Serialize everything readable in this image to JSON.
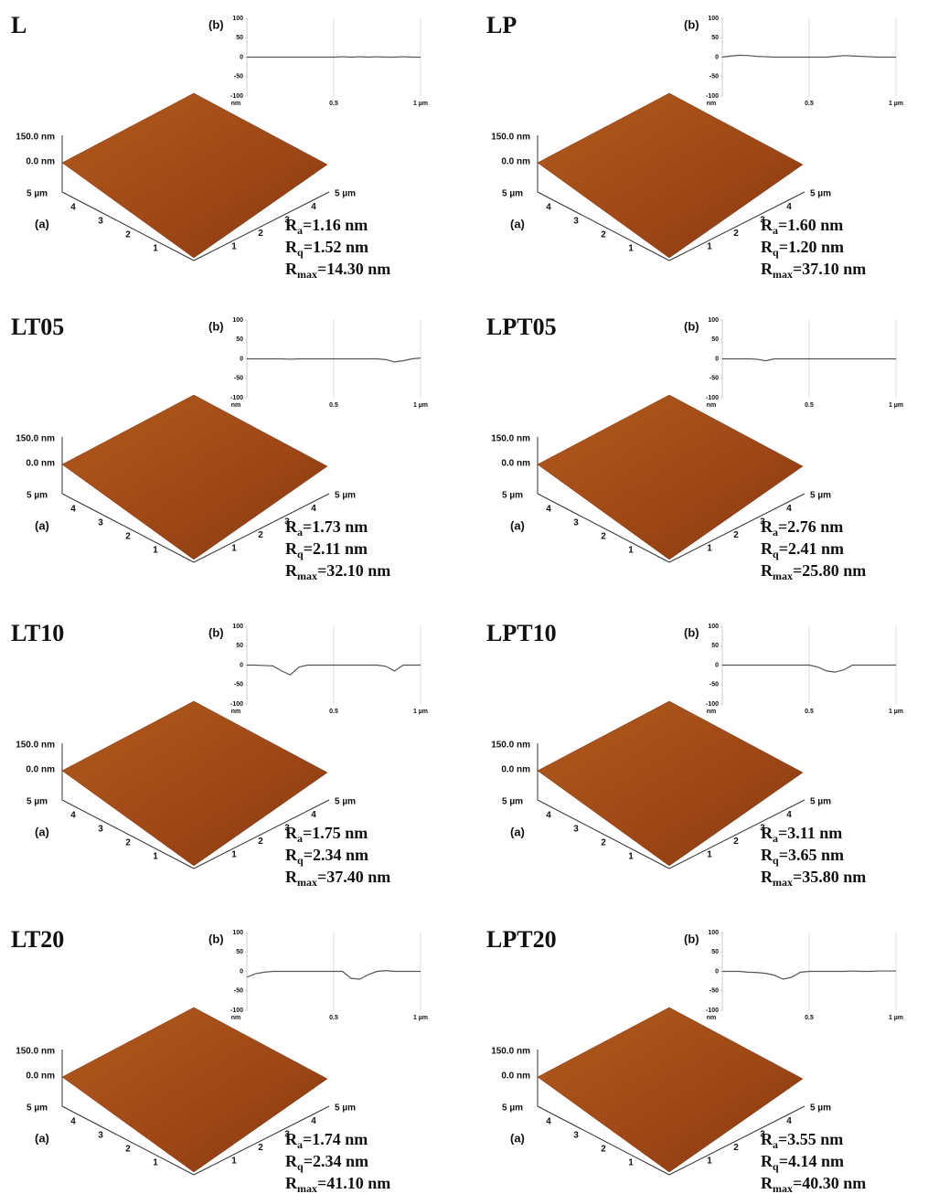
{
  "panels": [
    {
      "sample": "L",
      "afm": {
        "label": "(a)",
        "z_ticks": [
          "150.0 nm",
          "0.0 nm"
        ],
        "left_ticks": [
          "5 µm",
          "4",
          "3",
          "2",
          "1"
        ],
        "right_ticks": [
          "5 µm",
          "4",
          "3",
          "2",
          "1"
        ]
      },
      "roughness": [
        {
          "symbol": "R",
          "subscript": "a",
          "text": "=1.16 nm"
        },
        {
          "symbol": "R",
          "subscript": "q",
          "text": "=1.52 nm"
        },
        {
          "symbol": "R",
          "subscript": "max",
          "text": "=14.30 nm"
        }
      ]
    },
    {
      "sample": "LP",
      "afm": {
        "label": "(a)",
        "z_ticks": [
          "150.0 nm",
          "0.0 nm"
        ],
        "left_ticks": [
          "5 µm",
          "4",
          "3",
          "2",
          "1"
        ],
        "right_ticks": [
          "5 µm",
          "4",
          "3",
          "2",
          "1"
        ]
      },
      "roughness": [
        {
          "symbol": "R",
          "subscript": "a",
          "text": "=1.60 nm"
        },
        {
          "symbol": "R",
          "subscript": "q",
          "text": "=1.20 nm"
        },
        {
          "symbol": "R",
          "subscript": "max",
          "text": "=37.10 nm"
        }
      ]
    },
    {
      "sample": "LT05",
      "afm": {
        "label": "(a)",
        "z_ticks": [
          "150.0 nm",
          "0.0 nm"
        ],
        "left_ticks": [
          "5 µm",
          "4",
          "3",
          "2",
          "1"
        ],
        "right_ticks": [
          "5 µm",
          "4",
          "3",
          "2",
          "1"
        ]
      },
      "roughness": [
        {
          "symbol": "R",
          "subscript": "a",
          "text": "=1.73 nm"
        },
        {
          "symbol": "R",
          "subscript": "q",
          "text": "=2.11 nm"
        },
        {
          "symbol": "R",
          "subscript": "max",
          "text": "=32.10 nm"
        }
      ]
    },
    {
      "sample": "LPT05",
      "afm": {
        "label": "(a)",
        "z_ticks": [
          "150.0 nm",
          "0.0 nm"
        ],
        "left_ticks": [
          "5 µm",
          "4",
          "3",
          "2",
          "1"
        ],
        "right_ticks": [
          "5 µm",
          "4",
          "3",
          "2",
          "1"
        ]
      },
      "roughness": [
        {
          "symbol": "R",
          "subscript": "a",
          "text": "=2.76 nm"
        },
        {
          "symbol": "R",
          "subscript": "q",
          "text": "=2.41 nm"
        },
        {
          "symbol": "R",
          "subscript": "max",
          "text": "=25.80 nm"
        }
      ]
    },
    {
      "sample": "LT10",
      "afm": {
        "label": "(a)",
        "z_ticks": [
          "150.0 nm",
          "0.0 nm"
        ],
        "left_ticks": [
          "5 µm",
          "4",
          "3",
          "2",
          "1"
        ],
        "right_ticks": [
          "5 µm",
          "4",
          "3",
          "2",
          "1"
        ]
      },
      "roughness": [
        {
          "symbol": "R",
          "subscript": "a",
          "text": "=1.75 nm"
        },
        {
          "symbol": "R",
          "subscript": "q",
          "text": "=2.34 nm"
        },
        {
          "symbol": "R",
          "subscript": "max",
          "text": "=37.40 nm"
        }
      ]
    },
    {
      "sample": "LPT10",
      "afm": {
        "label": "(a)",
        "z_ticks": [
          "150.0 nm",
          "0.0 nm"
        ],
        "left_ticks": [
          "5 µm",
          "4",
          "3",
          "2",
          "1"
        ],
        "right_ticks": [
          "5 µm",
          "4",
          "3",
          "2",
          "1"
        ]
      },
      "roughness": [
        {
          "symbol": "R",
          "subscript": "a",
          "text": "=3.11 nm"
        },
        {
          "symbol": "R",
          "subscript": "q",
          "text": "=3.65 nm"
        },
        {
          "symbol": "R",
          "subscript": "max",
          "text": "=35.80 nm"
        }
      ]
    },
    {
      "sample": "LT20",
      "afm": {
        "label": "(a)",
        "z_ticks": [
          "150.0 nm",
          "0.0 nm"
        ],
        "left_ticks": [
          "5 µm",
          "4",
          "3",
          "2",
          "1"
        ],
        "right_ticks": [
          "5 µm",
          "4",
          "3",
          "2",
          "1"
        ]
      },
      "roughness": [
        {
          "symbol": "R",
          "subscript": "a",
          "text": "=1.74 nm"
        },
        {
          "symbol": "R",
          "subscript": "q",
          "text": "=2.34 nm"
        },
        {
          "symbol": "R",
          "subscript": "max",
          "text": "=41.10 nm"
        }
      ]
    },
    {
      "sample": "LPT20",
      "afm": {
        "label": "(a)",
        "z_ticks": [
          "150.0 nm",
          "0.0 nm"
        ],
        "left_ticks": [
          "5 µm",
          "4",
          "3",
          "2",
          "1"
        ],
        "right_ticks": [
          "5 µm",
          "4",
          "3",
          "2",
          "1"
        ]
      },
      "roughness": [
        {
          "symbol": "R",
          "subscript": "a",
          "text": "=3.55 nm"
        },
        {
          "symbol": "R",
          "subscript": "q",
          "text": "=4.14 nm"
        },
        {
          "symbol": "R",
          "subscript": "max",
          "text": "=40.30 nm"
        }
      ]
    }
  ],
  "chart_data": [
    {
      "type": "line",
      "panel_label": "(b)",
      "y_unit": "nm",
      "color": "#555555",
      "xlim": [
        0,
        1
      ],
      "ylim": [
        -100,
        100
      ],
      "xticks": [
        0.5,
        {
          "value": 1,
          "label": "1 µm"
        }
      ],
      "yticks": [
        100,
        50,
        0,
        -50,
        -100
      ],
      "x": [
        0,
        0.05,
        0.1,
        0.15,
        0.2,
        0.25,
        0.3,
        0.35,
        0.4,
        0.45,
        0.5,
        0.55,
        0.6,
        0.65,
        0.7,
        0.75,
        0.8,
        0.85,
        0.9,
        0.95,
        1
      ],
      "values": [
        0,
        0,
        0,
        0,
        0,
        0,
        0,
        0,
        0,
        0,
        0,
        1,
        0,
        1,
        0,
        1,
        0,
        0,
        1,
        0,
        0
      ]
    },
    {
      "type": "line",
      "panel_label": "(b)",
      "y_unit": "nm",
      "color": "#555555",
      "xlim": [
        0,
        1
      ],
      "ylim": [
        -100,
        100
      ],
      "xticks": [
        0.5,
        {
          "value": 1,
          "label": "1 µm"
        }
      ],
      "yticks": [
        100,
        50,
        0,
        -50,
        -100
      ],
      "x": [
        0,
        0.05,
        0.1,
        0.15,
        0.2,
        0.25,
        0.3,
        0.35,
        0.4,
        0.45,
        0.5,
        0.55,
        0.6,
        0.65,
        0.7,
        0.75,
        0.8,
        0.85,
        0.9,
        0.95,
        1
      ],
      "values": [
        0,
        3,
        5,
        4,
        2,
        1,
        0,
        0,
        0,
        0,
        0,
        0,
        0,
        2,
        4,
        3,
        2,
        1,
        0,
        0,
        0
      ]
    },
    {
      "type": "line",
      "panel_label": "(b)",
      "y_unit": "nm",
      "color": "#555555",
      "xlim": [
        0,
        1
      ],
      "ylim": [
        -100,
        100
      ],
      "xticks": [
        0.5,
        {
          "value": 1,
          "label": "1 µm"
        }
      ],
      "yticks": [
        100,
        50,
        0,
        -50,
        -100
      ],
      "x": [
        0,
        0.05,
        0.1,
        0.15,
        0.2,
        0.25,
        0.3,
        0.35,
        0.4,
        0.45,
        0.5,
        0.55,
        0.6,
        0.65,
        0.7,
        0.75,
        0.8,
        0.85,
        0.9,
        0.95,
        1
      ],
      "values": [
        0,
        0,
        0,
        0,
        0,
        -1,
        0,
        0,
        0,
        0,
        0,
        0,
        0,
        0,
        0,
        0,
        -2,
        -8,
        -5,
        0,
        2
      ]
    },
    {
      "type": "line",
      "panel_label": "(b)",
      "y_unit": "nm",
      "color": "#555555",
      "xlim": [
        0,
        1
      ],
      "ylim": [
        -100,
        100
      ],
      "xticks": [
        0.5,
        {
          "value": 1,
          "label": "1 µm"
        }
      ],
      "yticks": [
        100,
        50,
        0,
        -50,
        -100
      ],
      "x": [
        0,
        0.05,
        0.1,
        0.15,
        0.2,
        0.25,
        0.3,
        0.35,
        0.4,
        0.45,
        0.5,
        0.55,
        0.6,
        0.65,
        0.7,
        0.75,
        0.8,
        0.85,
        0.9,
        0.95,
        1
      ],
      "values": [
        0,
        0,
        0,
        0,
        -1,
        -5,
        0,
        0,
        0,
        0,
        0,
        0,
        0,
        0,
        0,
        0,
        0,
        0,
        0,
        0,
        0
      ]
    },
    {
      "type": "line",
      "panel_label": "(b)",
      "y_unit": "nm",
      "color": "#555555",
      "xlim": [
        0,
        1
      ],
      "ylim": [
        -100,
        100
      ],
      "xticks": [
        0.5,
        {
          "value": 1,
          "label": "1 µm"
        }
      ],
      "yticks": [
        100,
        50,
        0,
        -50,
        -100
      ],
      "x": [
        0,
        0.05,
        0.1,
        0.15,
        0.2,
        0.25,
        0.3,
        0.35,
        0.4,
        0.45,
        0.5,
        0.55,
        0.6,
        0.65,
        0.7,
        0.75,
        0.8,
        0.85,
        0.9,
        0.95,
        1
      ],
      "values": [
        0,
        0,
        -1,
        -2,
        -15,
        -25,
        -5,
        0,
        0,
        0,
        0,
        0,
        0,
        0,
        0,
        0,
        -3,
        -15,
        0,
        0,
        0
      ]
    },
    {
      "type": "line",
      "panel_label": "(b)",
      "y_unit": "nm",
      "color": "#555555",
      "xlim": [
        0,
        1
      ],
      "ylim": [
        -100,
        100
      ],
      "xticks": [
        0.5,
        {
          "value": 1,
          "label": "1 µm"
        }
      ],
      "yticks": [
        100,
        50,
        0,
        -50,
        -100
      ],
      "x": [
        0,
        0.05,
        0.1,
        0.15,
        0.2,
        0.25,
        0.3,
        0.35,
        0.4,
        0.45,
        0.5,
        0.55,
        0.6,
        0.65,
        0.7,
        0.75,
        0.8,
        0.85,
        0.9,
        0.95,
        1
      ],
      "values": [
        0,
        0,
        0,
        0,
        0,
        0,
        0,
        0,
        0,
        0,
        0,
        -5,
        -15,
        -18,
        -12,
        0,
        0,
        0,
        0,
        0,
        0
      ]
    },
    {
      "type": "line",
      "panel_label": "(b)",
      "y_unit": "nm",
      "color": "#555555",
      "xlim": [
        0,
        1
      ],
      "ylim": [
        -100,
        100
      ],
      "xticks": [
        0.5,
        {
          "value": 1,
          "label": "1 µm"
        }
      ],
      "yticks": [
        100,
        50,
        0,
        -50,
        -100
      ],
      "x": [
        0,
        0.05,
        0.1,
        0.15,
        0.2,
        0.25,
        0.3,
        0.35,
        0.4,
        0.45,
        0.5,
        0.55,
        0.6,
        0.65,
        0.7,
        0.75,
        0.8,
        0.85,
        0.9,
        0.95,
        1
      ],
      "values": [
        -15,
        -6,
        -2,
        0,
        0,
        0,
        0,
        0,
        0,
        0,
        0,
        0,
        -18,
        -20,
        -8,
        0,
        2,
        0,
        0,
        0,
        0
      ]
    },
    {
      "type": "line",
      "panel_label": "(b)",
      "y_unit": "nm",
      "color": "#555555",
      "xlim": [
        0,
        1
      ],
      "ylim": [
        -100,
        100
      ],
      "xticks": [
        0.5,
        {
          "value": 1,
          "label": "1 µm"
        }
      ],
      "yticks": [
        100,
        50,
        0,
        -50,
        -100
      ],
      "x": [
        0,
        0.05,
        0.1,
        0.15,
        0.2,
        0.25,
        0.3,
        0.35,
        0.4,
        0.45,
        0.5,
        0.55,
        0.6,
        0.65,
        0.7,
        0.75,
        0.8,
        0.85,
        0.9,
        0.95,
        1
      ],
      "values": [
        0,
        0,
        0,
        -2,
        -3,
        -5,
        -10,
        -20,
        -15,
        -2,
        0,
        0,
        0,
        0,
        0,
        1,
        0,
        0,
        1,
        1,
        1
      ]
    }
  ]
}
